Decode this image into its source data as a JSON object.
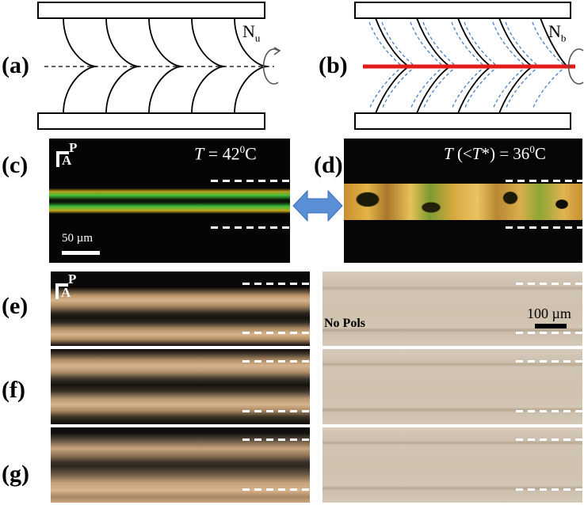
{
  "panels": {
    "a": "(a)",
    "b": "(b)",
    "c": "(c)",
    "d": "(d)",
    "e": "(e)",
    "f": "(f)",
    "g": "(g)"
  },
  "schematic": {
    "nu_base": "N",
    "nu_sub": "u",
    "nb_base": "N",
    "nb_sub": "b"
  },
  "micrographs": {
    "c_temp_prefix": "T",
    "c_temp_value": " = 42",
    "c_temp_sup": "0",
    "c_temp_unit": "C",
    "d_temp_prefix": "T",
    "d_temp_mid": " (<",
    "d_temp_tstar": "T",
    "d_temp_value": "*) = 36",
    "d_temp_sup": "0",
    "d_temp_unit": "C",
    "polarizer_label": "P",
    "analyzer_label": "A",
    "scale_c": "50 µm",
    "scale_e": "100 µm",
    "no_pols": "No Pols"
  },
  "colors": {
    "red_line": "#e31b1b",
    "director_blue": "#4a7fc0",
    "arrow_blue": "#5a8fd6"
  }
}
